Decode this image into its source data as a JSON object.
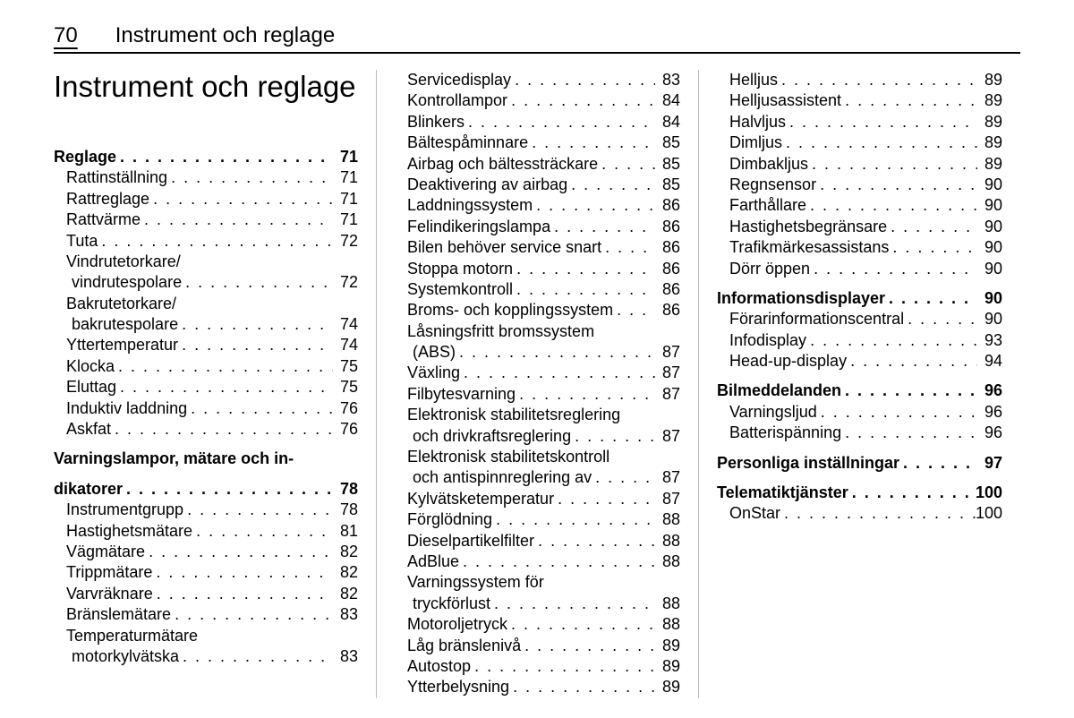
{
  "page_number": "70",
  "running_head": "Instrument och reglage",
  "main_heading": "Instrument och reglage",
  "columns": [
    [
      {
        "type": "section",
        "label": "Reglage",
        "page": "71"
      },
      {
        "type": "sub",
        "label": "Rattinställning",
        "page": "71"
      },
      {
        "type": "sub",
        "label": "Rattreglage",
        "page": "71"
      },
      {
        "type": "sub",
        "label": "Rattvärme",
        "page": "71"
      },
      {
        "type": "sub",
        "label": "Tuta",
        "page": "72"
      },
      {
        "type": "sub-wrap",
        "label": "Vindrutetorkare/"
      },
      {
        "type": "cont",
        "label": "vindrutespolare",
        "page": "72"
      },
      {
        "type": "sub-wrap",
        "label": "Bakrutetorkare/"
      },
      {
        "type": "cont",
        "label": "bakrutespolare",
        "page": "74"
      },
      {
        "type": "sub",
        "label": "Yttertemperatur",
        "page": "74"
      },
      {
        "type": "sub",
        "label": "Klocka",
        "page": "75"
      },
      {
        "type": "sub",
        "label": "Eluttag",
        "page": "75"
      },
      {
        "type": "sub",
        "label": "Induktiv laddning",
        "page": "76"
      },
      {
        "type": "sub",
        "label": "Askfat",
        "page": "76"
      },
      {
        "type": "section-wrap",
        "label": "Varningslampor, mätare och in-"
      },
      {
        "type": "section-cont",
        "label": "dikatorer",
        "page": "78"
      },
      {
        "type": "sub",
        "label": "Instrumentgrupp",
        "page": "78"
      },
      {
        "type": "sub",
        "label": "Hastighetsmätare",
        "page": "81"
      },
      {
        "type": "sub",
        "label": "Vägmätare",
        "page": "82"
      },
      {
        "type": "sub",
        "label": "Trippmätare",
        "page": "82"
      },
      {
        "type": "sub",
        "label": "Varvräknare",
        "page": "82"
      },
      {
        "type": "sub",
        "label": "Bränslemätare",
        "page": "83"
      },
      {
        "type": "sub-wrap",
        "label": "Temperaturmätare"
      },
      {
        "type": "cont",
        "label": "motorkylvätska",
        "page": "83"
      }
    ],
    [
      {
        "type": "sub",
        "label": "Servicedisplay",
        "page": "83"
      },
      {
        "type": "sub",
        "label": "Kontrollampor",
        "page": "84"
      },
      {
        "type": "sub",
        "label": "Blinkers",
        "page": "84"
      },
      {
        "type": "sub",
        "label": "Bältespåminnare",
        "page": "85"
      },
      {
        "type": "sub",
        "label": "Airbag och bältessträckare",
        "page": "85"
      },
      {
        "type": "sub",
        "label": "Deaktivering av airbag",
        "page": "85"
      },
      {
        "type": "sub",
        "label": "Laddningssystem",
        "page": "86"
      },
      {
        "type": "sub",
        "label": "Felindikeringslampa",
        "page": "86"
      },
      {
        "type": "sub",
        "label": "Bilen behöver service snart",
        "page": "86"
      },
      {
        "type": "sub",
        "label": "Stoppa motorn",
        "page": "86"
      },
      {
        "type": "sub",
        "label": "Systemkontroll",
        "page": "86"
      },
      {
        "type": "sub",
        "label": "Broms- och kopplingssystem",
        "page": "86"
      },
      {
        "type": "sub-wrap",
        "label": "Låsningsfritt bromssystem"
      },
      {
        "type": "cont",
        "label": "(ABS)",
        "page": "87"
      },
      {
        "type": "sub",
        "label": "Växling",
        "page": "87"
      },
      {
        "type": "sub",
        "label": "Filbytesvarning",
        "page": "87"
      },
      {
        "type": "sub-wrap",
        "label": "Elektronisk stabilitetsreglering"
      },
      {
        "type": "cont",
        "label": "och drivkraftsreglering",
        "page": "87"
      },
      {
        "type": "sub-wrap",
        "label": "Elektronisk stabilitetskontroll"
      },
      {
        "type": "cont",
        "label": "och antispinnreglering av",
        "page": "87"
      },
      {
        "type": "sub",
        "label": "Kylvätsketemperatur",
        "page": "87"
      },
      {
        "type": "sub",
        "label": "Förglödning",
        "page": "88"
      },
      {
        "type": "sub",
        "label": "Dieselpartikelfilter",
        "page": "88"
      },
      {
        "type": "sub",
        "label": "AdBlue",
        "page": "88"
      },
      {
        "type": "sub-wrap",
        "label": "Varningssystem för"
      },
      {
        "type": "cont",
        "label": "tryckförlust",
        "page": "88"
      },
      {
        "type": "sub",
        "label": "Motoroljetryck",
        "page": "88"
      },
      {
        "type": "sub",
        "label": "Låg bränslenivå",
        "page": "89"
      },
      {
        "type": "sub",
        "label": "Autostop",
        "page": "89"
      },
      {
        "type": "sub",
        "label": "Ytterbelysning",
        "page": "89"
      }
    ],
    [
      {
        "type": "sub",
        "label": "Helljus",
        "page": "89"
      },
      {
        "type": "sub",
        "label": "Helljusassistent",
        "page": "89"
      },
      {
        "type": "sub",
        "label": "Halvljus",
        "page": "89"
      },
      {
        "type": "sub",
        "label": "Dimljus",
        "page": "89"
      },
      {
        "type": "sub",
        "label": "Dimbakljus",
        "page": "89"
      },
      {
        "type": "sub",
        "label": "Regnsensor",
        "page": "90"
      },
      {
        "type": "sub",
        "label": "Farthållare",
        "page": "90"
      },
      {
        "type": "sub",
        "label": "Hastighetsbegränsare",
        "page": "90"
      },
      {
        "type": "sub",
        "label": "Trafikmärkesassistans",
        "page": "90"
      },
      {
        "type": "sub",
        "label": "Dörr öppen",
        "page": "90"
      },
      {
        "type": "section",
        "label": "Informationsdisplayer",
        "page": "90"
      },
      {
        "type": "sub",
        "label": "Förarinformationscentral",
        "page": "90"
      },
      {
        "type": "sub",
        "label": "Infodisplay",
        "page": "93"
      },
      {
        "type": "sub",
        "label": "Head-up-display",
        "page": "94"
      },
      {
        "type": "section",
        "label": "Bilmeddelanden",
        "page": "96"
      },
      {
        "type": "sub",
        "label": "Varningsljud",
        "page": "96"
      },
      {
        "type": "sub",
        "label": "Batterispänning",
        "page": "96"
      },
      {
        "type": "section",
        "label": "Personliga inställningar",
        "page": "97"
      },
      {
        "type": "section",
        "label": "Telematiktjänster",
        "page": "100"
      },
      {
        "type": "sub",
        "label": "OnStar",
        "page": "100"
      }
    ]
  ]
}
